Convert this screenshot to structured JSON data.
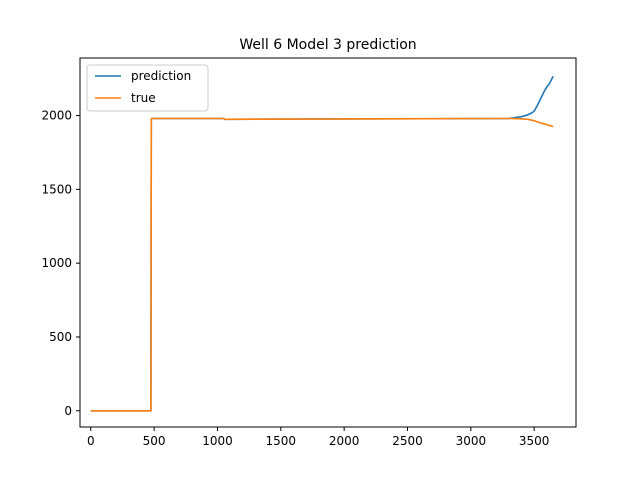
{
  "chart_data": {
    "type": "line",
    "title": "Well 6 Model 3 prediction",
    "xlabel": "",
    "ylabel": "",
    "xlim": [
      -85,
      3830
    ],
    "ylim": [
      -110,
      2390
    ],
    "xticks": [
      0,
      500,
      1000,
      1500,
      2000,
      2500,
      3000,
      3500
    ],
    "yticks": [
      0,
      500,
      1000,
      1500,
      2000
    ],
    "grid": false,
    "legend_position": "top-left",
    "series": [
      {
        "name": "prediction",
        "color": "#1f77b4",
        "x": [
          0,
          475,
          478,
          1050,
          1060,
          3300,
          3400,
          3450,
          3480,
          3500,
          3520,
          3540,
          3560,
          3580,
          3600,
          3620,
          3640,
          3650
        ],
        "y": [
          0,
          0,
          1980,
          1980,
          1975,
          1980,
          1992,
          2005,
          2018,
          2030,
          2060,
          2095,
          2130,
          2165,
          2195,
          2215,
          2250,
          2265
        ]
      },
      {
        "name": "true",
        "color": "#ff7f0e",
        "x": [
          0,
          475,
          478,
          1050,
          1060,
          3300,
          3400,
          3450,
          3500,
          3550,
          3600,
          3650
        ],
        "y": [
          0,
          0,
          1980,
          1980,
          1975,
          1980,
          1978,
          1975,
          1965,
          1950,
          1938,
          1925
        ]
      }
    ]
  }
}
